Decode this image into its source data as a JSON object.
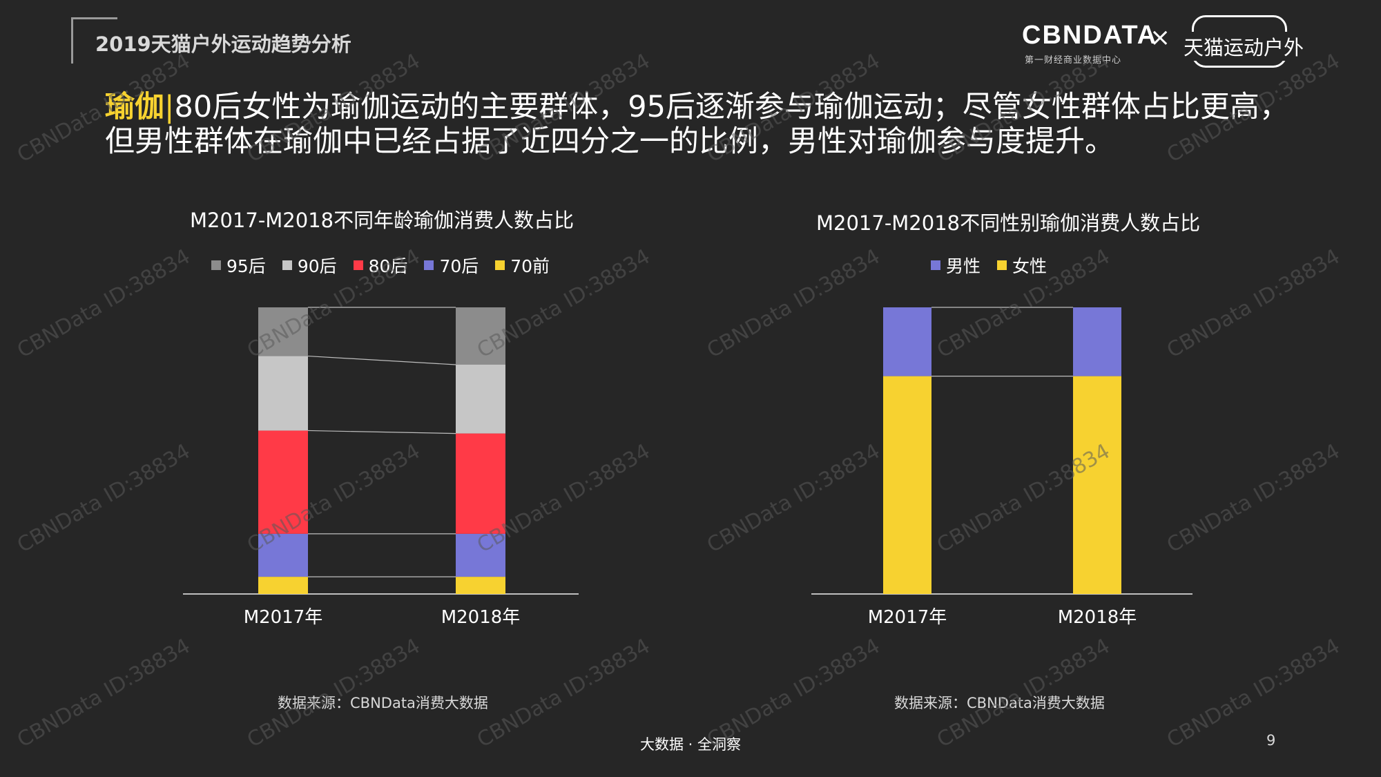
{
  "header": {
    "report_title": "2019天猫户外运动趋势分析",
    "logo_cbndata": "CBNDATA",
    "logo_cbndata_sub": "第一财经商业数据中心",
    "logo_separator": "×",
    "logo_tmall": "天猫运动户外"
  },
  "headline": {
    "keyword": "瑜伽",
    "separator": "|",
    "text": "80后女性为瑜伽运动的主要群体，95后逐渐参与瑜伽运动；尽管女性群体占比更高，但男性群体在瑜伽中已经占据了近四分之一的比例，男性对瑜伽参与度提升。"
  },
  "chart_data": [
    {
      "type": "bar",
      "stacked": true,
      "percent_stacked": true,
      "title": "M2017-M2018不同年龄瑜伽消费人数占比",
      "categories": [
        "M2017年",
        "M2018年"
      ],
      "series": [
        {
          "name": "95后",
          "color": "#8c8c8c",
          "values": [
            17,
            20
          ]
        },
        {
          "name": "90后",
          "color": "#c6c6c6",
          "values": [
            26,
            24
          ]
        },
        {
          "name": "80后",
          "color": "#ff3a47",
          "values": [
            36,
            35
          ]
        },
        {
          "name": "70后",
          "color": "#7777d7",
          "values": [
            15,
            15
          ]
        },
        {
          "name": "70前",
          "color": "#f7d230",
          "values": [
            6,
            6
          ]
        }
      ],
      "legend_position": "top",
      "grid": false,
      "ylim": [
        0,
        100
      ],
      "source": "数据来源：CBNData消费大数据"
    },
    {
      "type": "bar",
      "stacked": true,
      "percent_stacked": true,
      "title": "M2017-M2018不同性别瑜伽消费人数占比",
      "categories": [
        "M2017年",
        "M2018年"
      ],
      "series": [
        {
          "name": "男性",
          "color": "#7777d7",
          "values": [
            24,
            24
          ]
        },
        {
          "name": "女性",
          "color": "#f7d230",
          "values": [
            76,
            76
          ]
        }
      ],
      "legend_position": "top",
      "grid": false,
      "ylim": [
        0,
        100
      ],
      "source": "数据来源：CBNData消费大数据"
    }
  ],
  "footer": {
    "tagline": "大数据 · 全洞察",
    "page_number": "9"
  },
  "watermark": {
    "text": "CBNData ID:38834",
    "color": "#5a5a5a"
  }
}
